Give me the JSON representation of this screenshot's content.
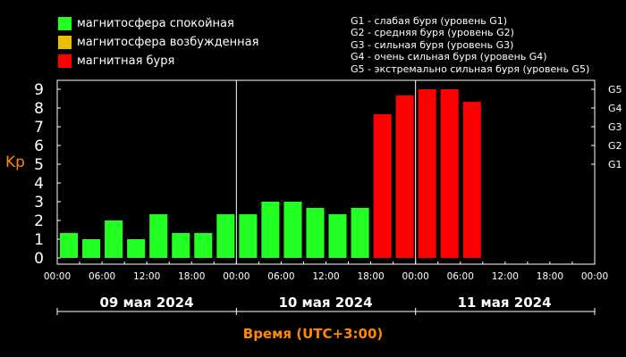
{
  "legend": {
    "items": [
      {
        "label": "магнитосфера спокойная",
        "color": "#22ff22"
      },
      {
        "label": "магнитосфера возбужденная",
        "color": "#e8c000"
      },
      {
        "label": "магнитная буря",
        "color": "#ff0000"
      }
    ],
    "storm_levels": [
      "G1 - слабая буря (уровень G1)",
      "G2 - средняя буря (уровень G2)",
      "G3 - сильная буря (уровень G3)",
      "G4 - очень сильная буря (уровень G4)",
      "G5 - экстремально сильная буря (уровень G5)"
    ]
  },
  "chart_data": {
    "type": "bar",
    "ylabel": "Kp",
    "xlabel": "Время (UTC+3:00)",
    "ylim": [
      0,
      9
    ],
    "yticks": [
      "0",
      "1",
      "2",
      "3",
      "4",
      "5",
      "6",
      "7",
      "8",
      "9"
    ],
    "right_ticks": [
      {
        "label": "G1",
        "value": 5
      },
      {
        "label": "G2",
        "value": 6
      },
      {
        "label": "G3",
        "value": 7
      },
      {
        "label": "G4",
        "value": 8
      },
      {
        "label": "G5",
        "value": 9
      }
    ],
    "xtick_labels": [
      "00:00",
      "06:00",
      "12:00",
      "18:00",
      "00:00",
      "06:00",
      "12:00",
      "18:00",
      "00:00",
      "06:00",
      "12:00",
      "18:00",
      "00:00"
    ],
    "days": [
      "09 мая 2024",
      "10 мая 2024",
      "11 мая 2024"
    ],
    "grid": false,
    "values": [
      1.33,
      1,
      2,
      1,
      2.33,
      1.33,
      1.33,
      2.33,
      2.33,
      3,
      3,
      2.67,
      2.33,
      2.67,
      7.67,
      8.67,
      9,
      9,
      8.33
    ],
    "colors": [
      "#22ff22",
      "#22ff22",
      "#22ff22",
      "#22ff22",
      "#22ff22",
      "#22ff22",
      "#22ff22",
      "#22ff22",
      "#22ff22",
      "#22ff22",
      "#22ff22",
      "#22ff22",
      "#22ff22",
      "#22ff22",
      "#ff0000",
      "#ff0000",
      "#ff0000",
      "#ff0000",
      "#ff0000"
    ]
  }
}
